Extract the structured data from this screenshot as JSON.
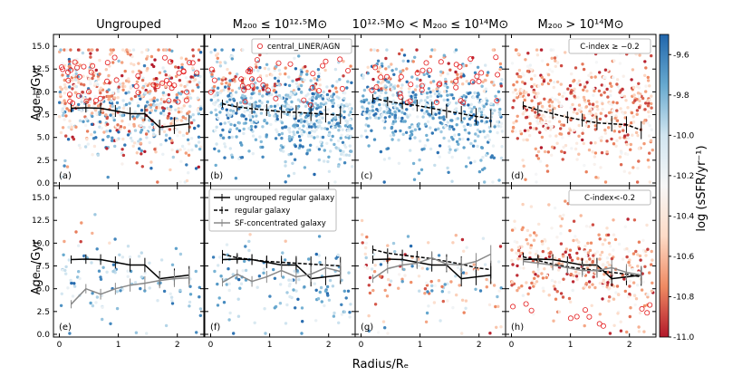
{
  "chart_data": {
    "type": "scatter",
    "colorbar": {
      "label": "log (sSFR/yr⁻¹)",
      "range": [
        -11.0,
        -9.5
      ],
      "ticks": [
        "-9.6",
        "-9.8",
        "-10.0",
        "-10.2",
        "-10.4",
        "-10.6",
        "-10.8",
        "-11.0"
      ],
      "tick_values": [
        -9.6,
        -9.8,
        -10.0,
        -10.2,
        -10.4,
        -10.6,
        -10.8,
        -11.0
      ],
      "cmap": [
        "#b2182b",
        "#ef8a62",
        "#fddbc7",
        "#f7f7f7",
        "#d1e5f0",
        "#67a9cf",
        "#2166ac"
      ]
    },
    "xlabel": "Radius/Rₑ",
    "ylabel": "Ageₘ/Gyr",
    "xlim": [
      -0.1,
      2.45
    ],
    "ylim": [
      -0.3,
      16.3
    ],
    "x_ticks": [
      "0",
      "1",
      "2"
    ],
    "x_tick_values": [
      0,
      1,
      2
    ],
    "y_ticks": [
      "0.0",
      "2.5",
      "5.0",
      "7.5",
      "10.0",
      "12.5",
      "15.0"
    ],
    "y_tick_values": [
      0,
      2.5,
      5,
      7.5,
      10,
      12.5,
      15
    ],
    "column_titles": [
      "Ungrouped",
      "M₂₀₀ ≤ 10¹²·⁵M⊙",
      "10¹²·⁵M⊙ < M₂₀₀ ≤ 10¹⁴M⊙",
      "M₂₀₀ > 10¹⁴M⊙"
    ],
    "panels": [
      {
        "label": "(a)",
        "points": 700,
        "mean_y": 8.6,
        "spread_y": 3.2,
        "color_mode": "mixed",
        "liner_markers": 45
      },
      {
        "label": "(b)",
        "points": 700,
        "mean_y": 8.2,
        "spread_y": 3.0,
        "color_mode": "blue",
        "liner_markers": 30,
        "legend": "central_LINER/AGN"
      },
      {
        "label": "(c)",
        "points": 600,
        "mean_y": 8.3,
        "spread_y": 3.0,
        "color_mode": "blue",
        "liner_markers": 35
      },
      {
        "label": "(d)",
        "points": 550,
        "mean_y": 8.2,
        "spread_y": 3.2,
        "color_mode": "red",
        "liner_markers": 0,
        "note": "C-index ≥ −0.2"
      },
      {
        "label": "(e)",
        "points": 110,
        "mean_y": 5.5,
        "spread_y": 2.5,
        "color_mode": "blue",
        "liner_markers": 0
      },
      {
        "label": "(f)",
        "points": 130,
        "mean_y": 5.6,
        "spread_y": 2.3,
        "color_mode": "blue",
        "liner_markers": 0
      },
      {
        "label": "(g)",
        "points": 140,
        "mean_y": 6.0,
        "spread_y": 2.6,
        "color_mode": "mixed",
        "liner_markers": 0
      },
      {
        "label": "(h)",
        "points": 350,
        "mean_y": 7.3,
        "spread_y": 2.8,
        "color_mode": "red",
        "liner_markers": 12,
        "note": "C-index<-0.2"
      }
    ],
    "x_bins": [
      0.2,
      0.45,
      0.7,
      0.95,
      1.2,
      1.45,
      1.7,
      1.95,
      2.2
    ],
    "series": [
      {
        "name": "ungrouped regular galaxy",
        "style": "solid",
        "color": "#000000",
        "values": [
          8.2,
          8.25,
          8.2,
          7.9,
          7.6,
          7.6,
          6.1,
          6.3,
          6.5
        ]
      },
      {
        "name": "regular galaxy (b)",
        "style": "dashed",
        "color": "#000000",
        "values": [
          8.7,
          8.35,
          8.15,
          8.0,
          7.8,
          7.75,
          7.65,
          7.55,
          7.45
        ]
      },
      {
        "name": "regular galaxy (c)",
        "style": "dashed",
        "color": "#000000",
        "values": [
          9.3,
          8.95,
          8.7,
          8.5,
          8.2,
          7.9,
          7.6,
          7.3,
          7.1
        ]
      },
      {
        "name": "regular galaxy (d)",
        "style": "dashed",
        "color": "#000000",
        "values": [
          8.5,
          8.0,
          7.6,
          7.2,
          6.9,
          6.6,
          6.5,
          6.4,
          5.8
        ]
      },
      {
        "name": "SF-concentrated galaxy (e)",
        "style": "solid",
        "color": "#888888",
        "values": [
          3.3,
          5.0,
          4.4,
          5.0,
          5.4,
          5.6,
          5.9,
          6.1,
          6.2
        ]
      },
      {
        "name": "SF-concentrated galaxy (f)",
        "style": "solid",
        "color": "#888888",
        "values": [
          5.7,
          6.6,
          5.8,
          6.3,
          7.0,
          6.3,
          6.6,
          7.3,
          6.9
        ]
      },
      {
        "name": "SF-concentrated galaxy (g)",
        "style": "solid",
        "color": "#888888",
        "values": [
          6.1,
          7.2,
          7.6,
          7.8,
          8.4,
          7.7,
          7.6,
          8.0,
          8.8
        ]
      },
      {
        "name": "SF-concentrated galaxy (h)",
        "style": "solid",
        "color": "#888888",
        "values": [
          8.0,
          7.8,
          7.6,
          7.3,
          7.0,
          7.0,
          7.3,
          6.8,
          6.5
        ]
      },
      {
        "name": "regular galaxy (f)",
        "style": "dashed",
        "color": "#000000",
        "values": [
          8.8,
          8.4,
          8.2,
          8.0,
          7.9,
          7.8,
          7.7,
          7.6,
          7.5
        ]
      },
      {
        "name": "regular galaxy (g)",
        "style": "dashed",
        "color": "#000000",
        "values": [
          9.3,
          8.9,
          8.7,
          8.5,
          8.3,
          8.0,
          7.7,
          7.3,
          7.1
        ]
      },
      {
        "name": "regular galaxy (h)",
        "style": "dashed",
        "color": "#000000",
        "values": [
          8.5,
          8.1,
          7.7,
          7.4,
          7.2,
          7.0,
          6.8,
          6.6,
          6.3
        ]
      }
    ],
    "panel_series": {
      "a": [
        "ungrouped regular galaxy"
      ],
      "b": [
        "regular galaxy (b)"
      ],
      "c": [
        "regular galaxy (c)"
      ],
      "d": [
        "regular galaxy (d)"
      ],
      "e": [
        "ungrouped regular galaxy",
        "SF-concentrated galaxy (e)"
      ],
      "f": [
        "ungrouped regular galaxy",
        "regular galaxy (f)",
        "SF-concentrated galaxy (f)"
      ],
      "g": [
        "ungrouped regular galaxy",
        "regular galaxy (g)",
        "SF-concentrated galaxy (g)"
      ],
      "h": [
        "ungrouped regular galaxy",
        "regular galaxy (h)",
        "SF-concentrated galaxy (h)"
      ]
    },
    "legend_top": "central_LINER/AGN",
    "legend_bottom": [
      "ungrouped regular galaxy",
      "regular galaxy",
      "SF-concentrated galaxy"
    ],
    "note_d": "C-index ≥ −0.2",
    "note_h": "C-index<-0.2"
  }
}
